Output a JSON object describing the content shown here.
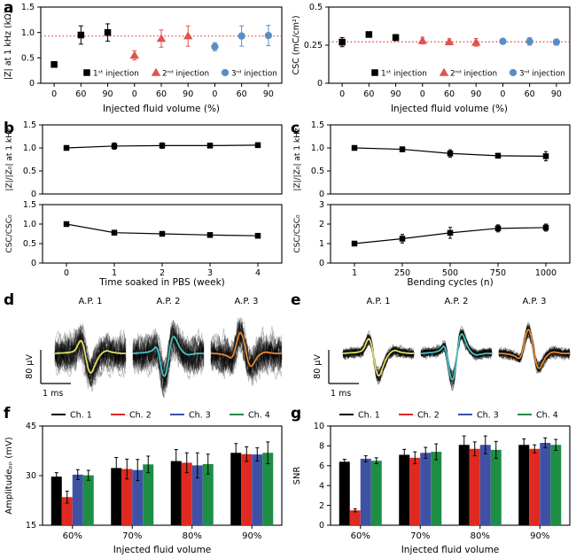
{
  "panels": {
    "a": "a",
    "b": "b",
    "c": "c",
    "d": "d",
    "e": "e",
    "f": "f",
    "g": "g"
  },
  "spike_waveforms": {
    "ap1": [
      0,
      0,
      0.01,
      0.01,
      0.02,
      0.02,
      0.02,
      0.03,
      0.03,
      0.04,
      0.05,
      0.06,
      0.08,
      0.12,
      0.2,
      0.34,
      0.48,
      0.56,
      0.5,
      0.3,
      0,
      -0.35,
      -0.65,
      -0.82,
      -0.85,
      -0.76,
      -0.6,
      -0.44,
      -0.3,
      -0.18,
      -0.08,
      -0.01,
      0.05,
      0.09,
      0.11,
      0.11,
      0.09,
      0.07,
      0.05,
      0.04,
      0.03,
      0.02,
      0.01,
      0.01,
      0,
      0,
      0,
      0
    ],
    "ap2": [
      0,
      0,
      0.01,
      0.01,
      0.02,
      0.02,
      0.03,
      0.03,
      0.04,
      0.05,
      0.06,
      0.08,
      0.1,
      0.14,
      0.2,
      0.28,
      0.22,
      0,
      -0.35,
      -0.72,
      -0.95,
      -1,
      -0.85,
      -0.5,
      -0.05,
      0.4,
      0.66,
      0.74,
      0.68,
      0.55,
      0.4,
      0.27,
      0.16,
      0.08,
      0.02,
      -0.02,
      -0.05,
      -0.06,
      -0.05,
      -0.04,
      -0.03,
      -0.02,
      -0.01,
      0,
      0,
      0,
      0,
      0
    ],
    "ap3": [
      0,
      0,
      0,
      -0.01,
      -0.01,
      -0.02,
      -0.03,
      -0.04,
      -0.05,
      -0.07,
      -0.09,
      -0.12,
      -0.16,
      -0.19,
      -0.17,
      -0.05,
      0.18,
      0.45,
      0.72,
      0.88,
      0.9,
      0.75,
      0.48,
      0.15,
      -0.18,
      -0.42,
      -0.55,
      -0.56,
      -0.48,
      -0.36,
      -0.25,
      -0.15,
      -0.08,
      -0.03,
      0.01,
      0.04,
      0.05,
      0.05,
      0.04,
      0.03,
      0.02,
      0.01,
      0,
      0,
      0,
      0,
      0,
      0
    ]
  },
  "chart_data": [
    {
      "id": "a_impedance",
      "type": "scatter",
      "ylabel": "|Z| at 1 kHz (kΩ)",
      "xlabel": "Injected fluid volume (%)",
      "ylim": [
        0,
        1.5
      ],
      "yticks": [
        0,
        0.5,
        1.0,
        1.5
      ],
      "ytick_labels": [
        "0",
        "0.5",
        "1.0",
        "1.5"
      ],
      "x_labels": [
        "0",
        "60",
        "90",
        "0",
        "60",
        "90",
        "0",
        "60",
        "90"
      ],
      "refline": {
        "y": 0.93,
        "color": "#e0392e"
      },
      "legend": [
        {
          "label": "1ˢᵗ injection",
          "marker": "square",
          "color": "#000000"
        },
        {
          "label": "2ⁿᵈ injection",
          "marker": "triangle",
          "color": "#e0534e"
        },
        {
          "label": "3ʳᵈ injection",
          "marker": "circle",
          "color": "#5b8dc5"
        }
      ],
      "series": [
        {
          "name": "1st injection",
          "marker": "square",
          "color": "#000000",
          "x_index": [
            0,
            1,
            2
          ],
          "y": [
            0.37,
            0.95,
            1.0
          ],
          "err": [
            0.05,
            0.18,
            0.17
          ]
        },
        {
          "name": "2nd injection",
          "marker": "triangle",
          "color": "#e0534e",
          "x_index": [
            3,
            4,
            5
          ],
          "y": [
            0.55,
            0.88,
            0.93
          ],
          "err": [
            0.09,
            0.17,
            0.2
          ]
        },
        {
          "name": "3rd injection",
          "marker": "circle",
          "color": "#5b8dc5",
          "x_index": [
            6,
            7,
            8
          ],
          "y": [
            0.72,
            0.93,
            0.94
          ],
          "err": [
            0.08,
            0.2,
            0.2
          ]
        }
      ]
    },
    {
      "id": "a_csc",
      "type": "scatter",
      "ylabel": "CSC (mC/cm²)",
      "xlabel": "Injected fluid volume (%)",
      "ylim": [
        0,
        0.5
      ],
      "yticks": [
        0,
        0.25,
        0.5
      ],
      "ytick_labels": [
        "0",
        "0.25",
        "0.5"
      ],
      "x_labels": [
        "0",
        "60",
        "90",
        "0",
        "60",
        "90",
        "0",
        "60",
        "90"
      ],
      "refline": {
        "y": 0.272,
        "color": "#e0392e"
      },
      "legend": [
        {
          "label": "1ˢᵗ injection",
          "marker": "square",
          "color": "#000000"
        },
        {
          "label": "2ⁿᵈ injection",
          "marker": "triangle",
          "color": "#e0534e"
        },
        {
          "label": "3ʳᵈ injection",
          "marker": "circle",
          "color": "#5b8dc5"
        }
      ],
      "series": [
        {
          "name": "1st injection",
          "marker": "square",
          "color": "#000000",
          "x_index": [
            0,
            1,
            2
          ],
          "y": [
            0.27,
            0.32,
            0.3
          ],
          "err": [
            0.03,
            0.012,
            0.02
          ]
        },
        {
          "name": "2nd injection",
          "marker": "triangle",
          "color": "#e0534e",
          "x_index": [
            3,
            4,
            5
          ],
          "y": [
            0.28,
            0.272,
            0.268
          ],
          "err": [
            0.022,
            0.02,
            0.025
          ]
        },
        {
          "name": "3rd injection",
          "marker": "circle",
          "color": "#5b8dc5",
          "x_index": [
            6,
            7,
            8
          ],
          "y": [
            0.275,
            0.275,
            0.27
          ],
          "err": [
            0.015,
            0.025,
            0.02
          ]
        }
      ]
    },
    {
      "id": "b",
      "type": "line_stack",
      "xlabel": "Time soaked in PBS (week)",
      "x_labels": [
        "0",
        "1",
        "2",
        "3",
        "4"
      ],
      "color": "#000000",
      "subplots": [
        {
          "ylabel": "|Z|/|Z₀| at 1 kHz",
          "ylim": [
            0,
            1.5
          ],
          "yticks": [
            0,
            0.5,
            1.0,
            1.5
          ],
          "ytick_labels": [
            "0",
            "0.5",
            "1.0",
            "1.5"
          ],
          "values": [
            1.0,
            1.04,
            1.05,
            1.05,
            1.06
          ],
          "err": [
            0.03,
            0.07,
            0.06,
            0.05,
            0.05
          ]
        },
        {
          "ylabel": "CSC/CSC₀",
          "ylim": [
            0,
            1.5
          ],
          "yticks": [
            0,
            0.5,
            1.0,
            1.5
          ],
          "ytick_labels": [
            "0",
            "0.5",
            "1.0",
            "1.5"
          ],
          "values": [
            1.0,
            0.78,
            0.75,
            0.72,
            0.7
          ],
          "err": [
            0.03,
            0.06,
            0.05,
            0.04,
            0.04
          ]
        }
      ]
    },
    {
      "id": "c",
      "type": "line_stack",
      "xlabel": "Bending cycles (n)",
      "x_labels": [
        "1",
        "250",
        "500",
        "750",
        "1000"
      ],
      "color": "#000000",
      "subplots": [
        {
          "ylabel": "|Z|/|Z₀| at 1 kHz",
          "ylim": [
            0,
            1.5
          ],
          "yticks": [
            0,
            0.5,
            1.0,
            1.5
          ],
          "ytick_labels": [
            "0",
            "0.5",
            "1.0",
            "1.5"
          ],
          "values": [
            1.0,
            0.97,
            0.88,
            0.83,
            0.82
          ],
          "err": [
            0.03,
            0.05,
            0.08,
            0.05,
            0.1
          ]
        },
        {
          "ylabel": "CSC/CSC₀",
          "ylim": [
            0,
            3
          ],
          "yticks": [
            0,
            1,
            2,
            3
          ],
          "ytick_labels": [
            "0",
            "1",
            "2",
            "3"
          ],
          "values": [
            1.0,
            1.25,
            1.55,
            1.78,
            1.82
          ],
          "err": [
            0.06,
            0.22,
            0.28,
            0.18,
            0.18
          ]
        }
      ]
    },
    {
      "id": "d",
      "type": "spikes",
      "noise_level": "high",
      "scalebar": {
        "v": "80 μV",
        "h": "1 ms"
      },
      "units": [
        {
          "title": "A.P. 1",
          "wave": "ap1",
          "color": "#e3df63"
        },
        {
          "title": "A.P. 2",
          "wave": "ap2",
          "color": "#45c3c5"
        },
        {
          "title": "A.P. 3",
          "wave": "ap3",
          "color": "#e7872c"
        }
      ]
    },
    {
      "id": "e",
      "type": "spikes",
      "noise_level": "low",
      "scalebar": {
        "v": "80 μV",
        "h": "1 ms"
      },
      "units": [
        {
          "title": "A.P. 1",
          "wave": "ap1",
          "color": "#e3df63"
        },
        {
          "title": "A.P. 2",
          "wave": "ap2",
          "color": "#45c3c5"
        },
        {
          "title": "A.P. 3",
          "wave": "ap3",
          "color": "#e7872c"
        }
      ]
    },
    {
      "id": "f",
      "type": "bar",
      "ylabel": "Amplitudeₚₚ (mV)",
      "xlabel": "Injected fluid volume",
      "ylim": [
        15,
        45
      ],
      "yticks": [
        15,
        30,
        45
      ],
      "ytick_labels": [
        "15",
        "30",
        "45"
      ],
      "categories": [
        "60%",
        "70%",
        "80%",
        "90%"
      ],
      "series": [
        {
          "name": "Ch. 1",
          "color": "#000000",
          "values": [
            29.7,
            32.3,
            34.4,
            36.9
          ],
          "err": [
            1.2,
            3.2,
            3.5,
            2.8
          ]
        },
        {
          "name": "Ch. 2",
          "color": "#e02920",
          "values": [
            23.5,
            32.0,
            33.9,
            36.5
          ],
          "err": [
            1.8,
            3.0,
            3.0,
            2.2
          ]
        },
        {
          "name": "Ch. 3",
          "color": "#3f51a5",
          "values": [
            30.3,
            31.7,
            33.1,
            36.4
          ],
          "err": [
            1.5,
            3.2,
            3.8,
            2.0
          ]
        },
        {
          "name": "Ch. 4",
          "color": "#1e8e45",
          "values": [
            30.1,
            33.4,
            33.5,
            36.9
          ],
          "err": [
            1.5,
            2.5,
            3.0,
            3.3
          ]
        }
      ]
    },
    {
      "id": "g",
      "type": "bar",
      "ylabel": "SNR",
      "xlabel": "Injected fluid volume",
      "ylim": [
        0,
        10
      ],
      "yticks": [
        0,
        2,
        4,
        6,
        8,
        10
      ],
      "ytick_labels": [
        "0",
        "2",
        "4",
        "6",
        "8",
        "10"
      ],
      "categories": [
        "60%",
        "70%",
        "80%",
        "90%"
      ],
      "series": [
        {
          "name": "Ch. 1",
          "color": "#000000",
          "values": [
            6.4,
            7.1,
            8.1,
            8.1
          ],
          "err": [
            0.25,
            0.55,
            0.9,
            0.6
          ]
        },
        {
          "name": "Ch. 2",
          "color": "#e02920",
          "values": [
            1.5,
            6.8,
            7.7,
            7.7
          ],
          "err": [
            0.15,
            0.6,
            0.7,
            0.4
          ]
        },
        {
          "name": "Ch. 3",
          "color": "#3f51a5",
          "values": [
            6.7,
            7.3,
            8.1,
            8.3
          ],
          "err": [
            0.3,
            0.55,
            0.9,
            0.5
          ]
        },
        {
          "name": "Ch. 4",
          "color": "#1e8e45",
          "values": [
            6.5,
            7.4,
            7.6,
            8.1
          ],
          "err": [
            0.3,
            0.8,
            0.85,
            0.55
          ]
        }
      ]
    }
  ]
}
